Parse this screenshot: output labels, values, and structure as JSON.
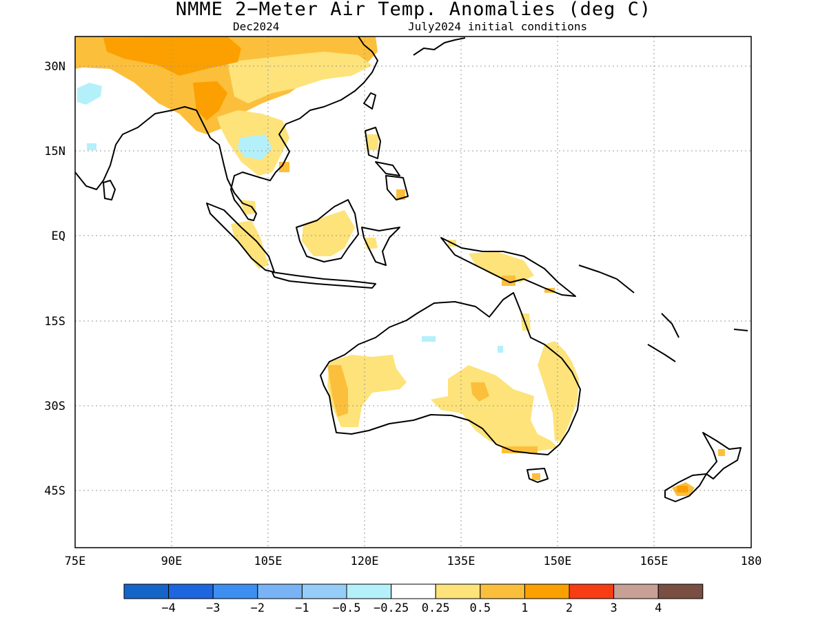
{
  "title": "NMME 2−Meter Air Temp. Anomalies (deg C)",
  "subtitle_left": "Dec2024",
  "subtitle_right": "July2024 initial conditions",
  "lat_labels": [
    "30N",
    "15N",
    "EQ",
    "15S",
    "30S",
    "45S"
  ],
  "lon_labels": [
    "75E",
    "90E",
    "105E",
    "120E",
    "135E",
    "150E",
    "165E",
    "180"
  ],
  "colorbar": {
    "colors": [
      "#1565c8",
      "#1e66e0",
      "#3c8ff0",
      "#78b4f5",
      "#96cdf8",
      "#b4f0fa",
      "#ffffff",
      "#fde37a",
      "#fcbf3c",
      "#fba000",
      "#f83c14",
      "#c8a096",
      "#7a4e42"
    ],
    "labels": [
      "−4",
      "−3",
      "−2",
      "−1",
      "−0.5",
      "−0.25",
      "0.25",
      "0.5",
      "1",
      "2",
      "3",
      "4"
    ]
  },
  "anomaly_colors": {
    "warm_light": "#fde37a",
    "warm_mid": "#fcbf3c",
    "warm_strong": "#fba000",
    "cool_light": "#b4f0fa"
  }
}
